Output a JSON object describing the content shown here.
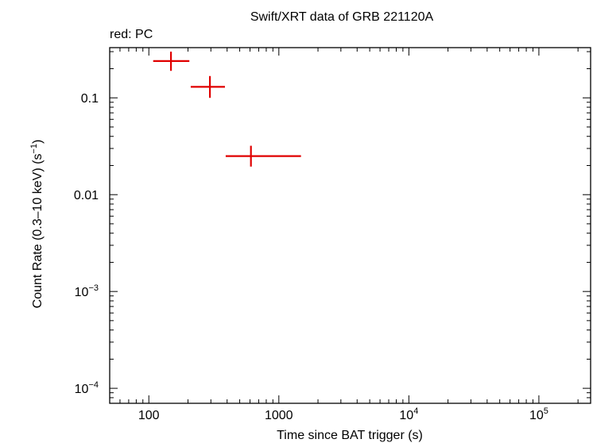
{
  "chart_data": {
    "type": "scatter",
    "title": "Swift/XRT data of GRB 221120A",
    "subtitle": "red: PC",
    "xlabel": "Time since BAT trigger (s)",
    "ylabel_main": "Count Rate (0.3–10 keV) (s",
    "ylabel_sup": "−1",
    "ylabel_end": ")",
    "x_scale": "log",
    "y_scale": "log",
    "xlim": [
      50,
      250000
    ],
    "ylim": [
      7e-05,
      0.33
    ],
    "grid": false,
    "x_ticks": [
      {
        "value": 100,
        "base": "100",
        "sup": ""
      },
      {
        "value": 1000,
        "base": "1000",
        "sup": ""
      },
      {
        "value": 10000,
        "base": "10",
        "sup": "4"
      },
      {
        "value": 100000,
        "base": "10",
        "sup": "5"
      }
    ],
    "y_ticks": [
      {
        "value": 0.1,
        "base": "0.1",
        "sup": ""
      },
      {
        "value": 0.01,
        "base": "0.01",
        "sup": ""
      },
      {
        "value": 0.001,
        "base": "10",
        "sup": "−3"
      },
      {
        "value": 0.0001,
        "base": "10",
        "sup": "−4"
      }
    ],
    "series": [
      {
        "color": "#e00000",
        "points": [
          {
            "x": 148,
            "xlo": 108,
            "xhi": 205,
            "y": 0.24,
            "ylo": 0.19,
            "yhi": 0.3
          },
          {
            "x": 295,
            "xlo": 210,
            "xhi": 385,
            "y": 0.13,
            "ylo": 0.1,
            "yhi": 0.168
          },
          {
            "x": 610,
            "xlo": 390,
            "xhi": 1480,
            "y": 0.025,
            "ylo": 0.0195,
            "yhi": 0.032
          }
        ]
      }
    ]
  }
}
